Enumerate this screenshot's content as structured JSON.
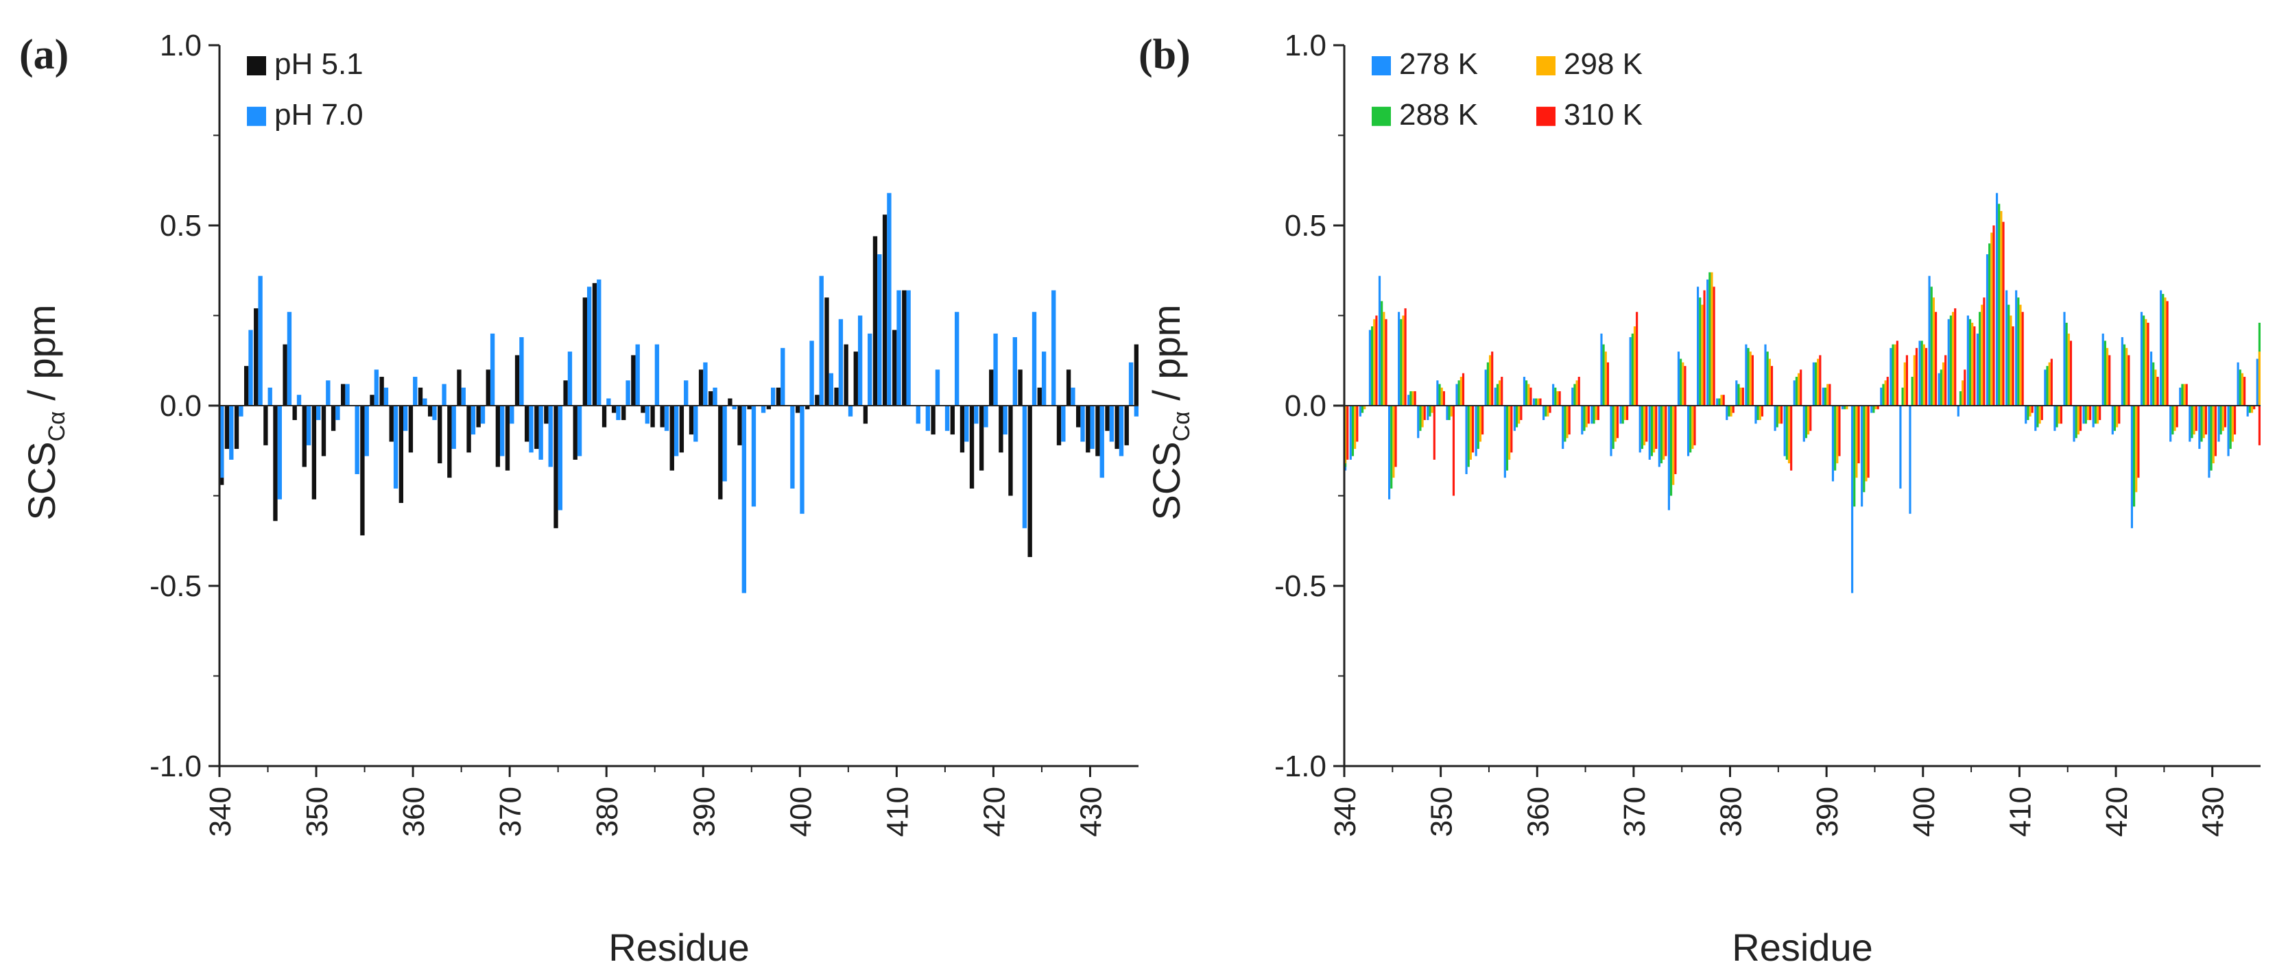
{
  "figure": {
    "colors": {
      "pH 5.1": "#111111",
      "pH 7.0": "#1e90ff",
      "278 K": "#1e90ff",
      "288 K": "#1fc43a",
      "298 K": "#ffb400",
      "310 K": "#ff1a0e",
      "axis": "#222222"
    }
  },
  "chart_data": [
    {
      "type": "bar",
      "panel": "(a)",
      "xlabel": "Residue",
      "ylabel": "SCS",
      "ylabel_sub": "Cα",
      "ylabel_suffix": " / ppm",
      "xlim": [
        340,
        435
      ],
      "ylim": [
        -1.0,
        1.0
      ],
      "yticks": [
        1.0,
        0.5,
        0.0,
        -0.5,
        -1.0
      ],
      "ytick_labels": [
        "1.0",
        "0.5",
        "0.0",
        "-0.5",
        "-1.0"
      ],
      "xticks": [
        340,
        350,
        360,
        370,
        380,
        390,
        400,
        410,
        420,
        430
      ],
      "xtick_labels": [
        "340",
        "350",
        "360",
        "370",
        "380",
        "390",
        "400",
        "410",
        "420",
        "430"
      ],
      "legend_position": "top-left",
      "x": [
        340,
        341,
        342,
        343,
        344,
        345,
        346,
        347,
        348,
        349,
        350,
        351,
        352,
        353,
        354,
        355,
        356,
        357,
        358,
        359,
        360,
        361,
        362,
        363,
        364,
        365,
        366,
        367,
        368,
        369,
        370,
        371,
        372,
        373,
        374,
        375,
        376,
        377,
        378,
        379,
        380,
        381,
        382,
        383,
        384,
        385,
        386,
        387,
        388,
        389,
        390,
        391,
        392,
        393,
        394,
        395,
        396,
        397,
        398,
        399,
        400,
        401,
        402,
        403,
        404,
        405,
        406,
        407,
        408,
        409,
        410,
        411,
        412,
        413,
        414,
        415,
        416,
        417,
        418,
        419,
        420,
        421,
        422,
        423,
        424,
        425,
        426,
        427,
        428,
        429,
        430,
        431,
        432,
        433,
        434,
        435
      ],
      "series": [
        {
          "name": "pH 5.1",
          "values": [
            -0.22,
            -0.12,
            -0.12,
            0.11,
            0.27,
            -0.11,
            -0.32,
            0.17,
            -0.04,
            -0.17,
            -0.26,
            -0.14,
            -0.07,
            0.06,
            0.0,
            -0.36,
            0.03,
            0.08,
            -0.1,
            -0.27,
            -0.13,
            0.05,
            -0.03,
            -0.16,
            -0.2,
            0.1,
            -0.13,
            -0.06,
            0.1,
            -0.17,
            -0.18,
            0.14,
            -0.1,
            -0.12,
            -0.05,
            -0.34,
            0.07,
            -0.15,
            0.3,
            0.34,
            -0.06,
            -0.02,
            -0.04,
            0.14,
            -0.02,
            -0.06,
            -0.06,
            -0.18,
            -0.13,
            -0.08,
            0.1,
            0.04,
            -0.26,
            0.02,
            -0.11,
            -0.01,
            0.0,
            -0.01,
            0.05,
            0.0,
            -0.02,
            -0.01,
            0.03,
            0.3,
            0.05,
            0.17,
            0.15,
            -0.05,
            0.47,
            0.53,
            0.21,
            0.32,
            0.0,
            0.0,
            -0.08,
            0.0,
            -0.08,
            -0.13,
            -0.23,
            -0.18,
            0.1,
            -0.13,
            -0.25,
            0.1,
            -0.42,
            0.05,
            0.0,
            -0.11,
            0.1,
            -0.06,
            -0.13,
            -0.14,
            -0.07,
            -0.12,
            -0.11,
            0.17
          ]
        },
        {
          "name": "pH 7.0",
          "values": [
            -0.2,
            -0.15,
            -0.03,
            0.21,
            0.36,
            0.05,
            -0.26,
            0.26,
            0.03,
            -0.11,
            -0.04,
            0.07,
            -0.04,
            0.06,
            -0.19,
            -0.14,
            0.1,
            0.05,
            -0.23,
            -0.07,
            0.08,
            0.02,
            -0.04,
            0.06,
            -0.12,
            0.05,
            -0.08,
            -0.05,
            0.2,
            -0.14,
            -0.05,
            0.19,
            -0.13,
            -0.15,
            -0.17,
            -0.29,
            0.15,
            -0.14,
            0.33,
            0.35,
            0.02,
            -0.04,
            0.07,
            0.17,
            -0.05,
            0.17,
            -0.07,
            -0.14,
            0.07,
            -0.1,
            0.12,
            0.05,
            -0.21,
            -0.01,
            -0.52,
            -0.28,
            -0.02,
            0.05,
            0.16,
            -0.23,
            -0.3,
            0.18,
            0.36,
            0.09,
            0.24,
            -0.03,
            0.25,
            0.2,
            0.42,
            0.59,
            0.32,
            0.32,
            -0.05,
            -0.07,
            0.1,
            -0.07,
            0.26,
            -0.1,
            -0.05,
            -0.06,
            0.2,
            -0.08,
            0.19,
            -0.34,
            0.26,
            0.15,
            0.32,
            -0.1,
            0.05,
            -0.1,
            -0.12,
            -0.2,
            -0.1,
            -0.14,
            0.12,
            -0.03
          ]
        }
      ]
    },
    {
      "type": "bar",
      "panel": "(b)",
      "xlabel": "Residue",
      "ylabel": "SCS",
      "ylabel_sub": "Cα",
      "ylabel_suffix": " / ppm",
      "xlim": [
        340,
        435
      ],
      "ylim": [
        -1.0,
        1.0
      ],
      "yticks": [
        1.0,
        0.5,
        0.0,
        -0.5,
        -1.0
      ],
      "ytick_labels": [
        "1.0",
        "0.5",
        "0.0",
        "-0.5",
        "-1.0"
      ],
      "xticks": [
        340,
        350,
        360,
        370,
        380,
        390,
        400,
        410,
        420,
        430
      ],
      "xtick_labels": [
        "340",
        "350",
        "360",
        "370",
        "380",
        "390",
        "400",
        "410",
        "420",
        "430"
      ],
      "legend_position": "top-left",
      "x": [
        340,
        341,
        342,
        343,
        344,
        345,
        346,
        347,
        348,
        349,
        350,
        351,
        352,
        353,
        354,
        355,
        356,
        357,
        358,
        359,
        360,
        361,
        362,
        363,
        364,
        365,
        366,
        367,
        368,
        369,
        370,
        371,
        372,
        373,
        374,
        375,
        376,
        377,
        378,
        379,
        380,
        381,
        382,
        383,
        384,
        385,
        386,
        387,
        388,
        389,
        390,
        391,
        392,
        393,
        394,
        395,
        396,
        397,
        398,
        399,
        400,
        401,
        402,
        403,
        404,
        405,
        406,
        407,
        408,
        409,
        410,
        411,
        412,
        413,
        414,
        415,
        416,
        417,
        418,
        419,
        420,
        421,
        422,
        423,
        424,
        425,
        426,
        427,
        428,
        429,
        430,
        431,
        432,
        433,
        434,
        435
      ],
      "series": [
        {
          "name": "278 K",
          "values": [
            -0.18,
            -0.15,
            -0.03,
            0.21,
            0.36,
            -0.26,
            0.26,
            0.03,
            -0.09,
            -0.04,
            0.07,
            -0.04,
            0.06,
            -0.19,
            -0.14,
            0.1,
            0.05,
            -0.2,
            -0.07,
            0.08,
            0.02,
            -0.04,
            0.06,
            -0.12,
            0.05,
            -0.08,
            -0.05,
            0.2,
            -0.14,
            -0.05,
            0.19,
            -0.13,
            -0.15,
            -0.17,
            -0.29,
            0.15,
            -0.14,
            0.33,
            0.35,
            0.02,
            -0.04,
            0.07,
            0.17,
            -0.05,
            0.17,
            -0.07,
            -0.14,
            0.07,
            -0.1,
            0.12,
            0.05,
            -0.21,
            -0.01,
            -0.52,
            -0.28,
            -0.02,
            0.05,
            0.16,
            -0.23,
            -0.3,
            0.18,
            0.36,
            0.09,
            0.24,
            -0.03,
            0.25,
            0.2,
            0.42,
            0.59,
            0.32,
            0.32,
            -0.05,
            -0.07,
            0.1,
            -0.07,
            0.26,
            -0.1,
            -0.05,
            -0.06,
            0.2,
            -0.08,
            0.19,
            -0.34,
            0.26,
            0.15,
            0.32,
            -0.1,
            0.05,
            -0.1,
            -0.12,
            -0.2,
            -0.1,
            -0.14,
            0.12,
            -0.03,
            0.13
          ]
        },
        {
          "name": "288 K",
          "values": [
            -0.17,
            -0.14,
            -0.02,
            0.22,
            0.29,
            -0.23,
            0.24,
            0.04,
            -0.07,
            -0.03,
            0.06,
            -0.04,
            0.07,
            -0.17,
            -0.12,
            0.12,
            0.06,
            -0.18,
            -0.06,
            0.07,
            0.02,
            -0.03,
            0.05,
            -0.1,
            0.06,
            -0.07,
            -0.05,
            0.17,
            -0.12,
            -0.05,
            0.2,
            -0.12,
            -0.14,
            -0.16,
            -0.25,
            0.13,
            -0.13,
            0.3,
            0.37,
            0.02,
            -0.03,
            0.06,
            0.16,
            -0.04,
            0.15,
            -0.06,
            -0.15,
            0.08,
            -0.09,
            0.12,
            0.05,
            -0.18,
            -0.01,
            -0.28,
            -0.24,
            -0.02,
            0.06,
            0.17,
            0.05,
            0.08,
            0.18,
            0.33,
            0.1,
            0.25,
            0.04,
            0.24,
            0.26,
            0.45,
            0.56,
            0.28,
            0.3,
            -0.04,
            -0.06,
            0.11,
            -0.06,
            0.23,
            -0.09,
            -0.05,
            -0.05,
            0.18,
            -0.07,
            0.17,
            -0.28,
            0.25,
            0.12,
            0.31,
            -0.08,
            0.06,
            -0.09,
            -0.1,
            -0.18,
            -0.08,
            -0.12,
            0.1,
            -0.02,
            0.23
          ]
        },
        {
          "name": "298 K",
          "values": [
            -0.16,
            -0.12,
            -0.01,
            0.24,
            0.26,
            -0.2,
            0.25,
            0.04,
            -0.06,
            -0.02,
            0.05,
            -0.03,
            0.08,
            -0.15,
            -0.1,
            0.14,
            0.07,
            -0.15,
            -0.05,
            0.06,
            0.02,
            -0.03,
            0.04,
            -0.09,
            0.07,
            -0.06,
            -0.04,
            0.15,
            -0.1,
            -0.04,
            0.22,
            -0.11,
            -0.13,
            -0.15,
            -0.22,
            0.12,
            -0.12,
            0.28,
            0.37,
            0.03,
            -0.03,
            0.05,
            0.15,
            -0.04,
            0.13,
            -0.05,
            -0.16,
            0.09,
            -0.08,
            0.13,
            0.06,
            -0.16,
            -0.01,
            -0.2,
            -0.21,
            -0.01,
            0.07,
            0.17,
            0.12,
            0.14,
            0.17,
            0.3,
            0.12,
            0.26,
            0.07,
            0.23,
            0.28,
            0.48,
            0.54,
            0.25,
            0.28,
            -0.03,
            -0.05,
            0.12,
            -0.05,
            0.2,
            -0.08,
            -0.04,
            -0.05,
            0.16,
            -0.06,
            0.16,
            -0.24,
            0.24,
            0.1,
            0.3,
            -0.07,
            0.06,
            -0.08,
            -0.09,
            -0.16,
            -0.07,
            -0.1,
            0.09,
            -0.02,
            0.15
          ]
        },
        {
          "name": "310 K",
          "values": [
            -0.15,
            -0.1,
            0.0,
            0.25,
            0.24,
            -0.17,
            0.27,
            0.04,
            -0.04,
            -0.15,
            0.04,
            -0.25,
            0.09,
            -0.13,
            -0.08,
            0.15,
            0.08,
            -0.13,
            -0.04,
            0.05,
            0.02,
            -0.02,
            0.04,
            -0.08,
            0.08,
            -0.05,
            -0.04,
            0.12,
            -0.09,
            -0.04,
            0.26,
            -0.1,
            -0.12,
            -0.14,
            -0.19,
            0.11,
            -0.11,
            0.32,
            0.33,
            0.03,
            -0.02,
            0.05,
            0.14,
            -0.03,
            0.11,
            -0.05,
            -0.18,
            0.1,
            -0.07,
            0.14,
            0.06,
            -0.14,
            0.0,
            -0.16,
            -0.2,
            -0.01,
            0.08,
            0.18,
            0.14,
            0.16,
            0.16,
            0.26,
            0.14,
            0.27,
            0.1,
            0.22,
            0.3,
            0.5,
            0.51,
            0.22,
            0.26,
            -0.02,
            -0.04,
            0.13,
            -0.05,
            0.18,
            -0.07,
            -0.04,
            -0.04,
            0.14,
            -0.05,
            0.14,
            -0.2,
            0.23,
            0.08,
            0.29,
            -0.06,
            0.06,
            -0.07,
            -0.08,
            -0.14,
            -0.06,
            -0.08,
            0.08,
            -0.01,
            -0.11
          ]
        }
      ]
    }
  ]
}
